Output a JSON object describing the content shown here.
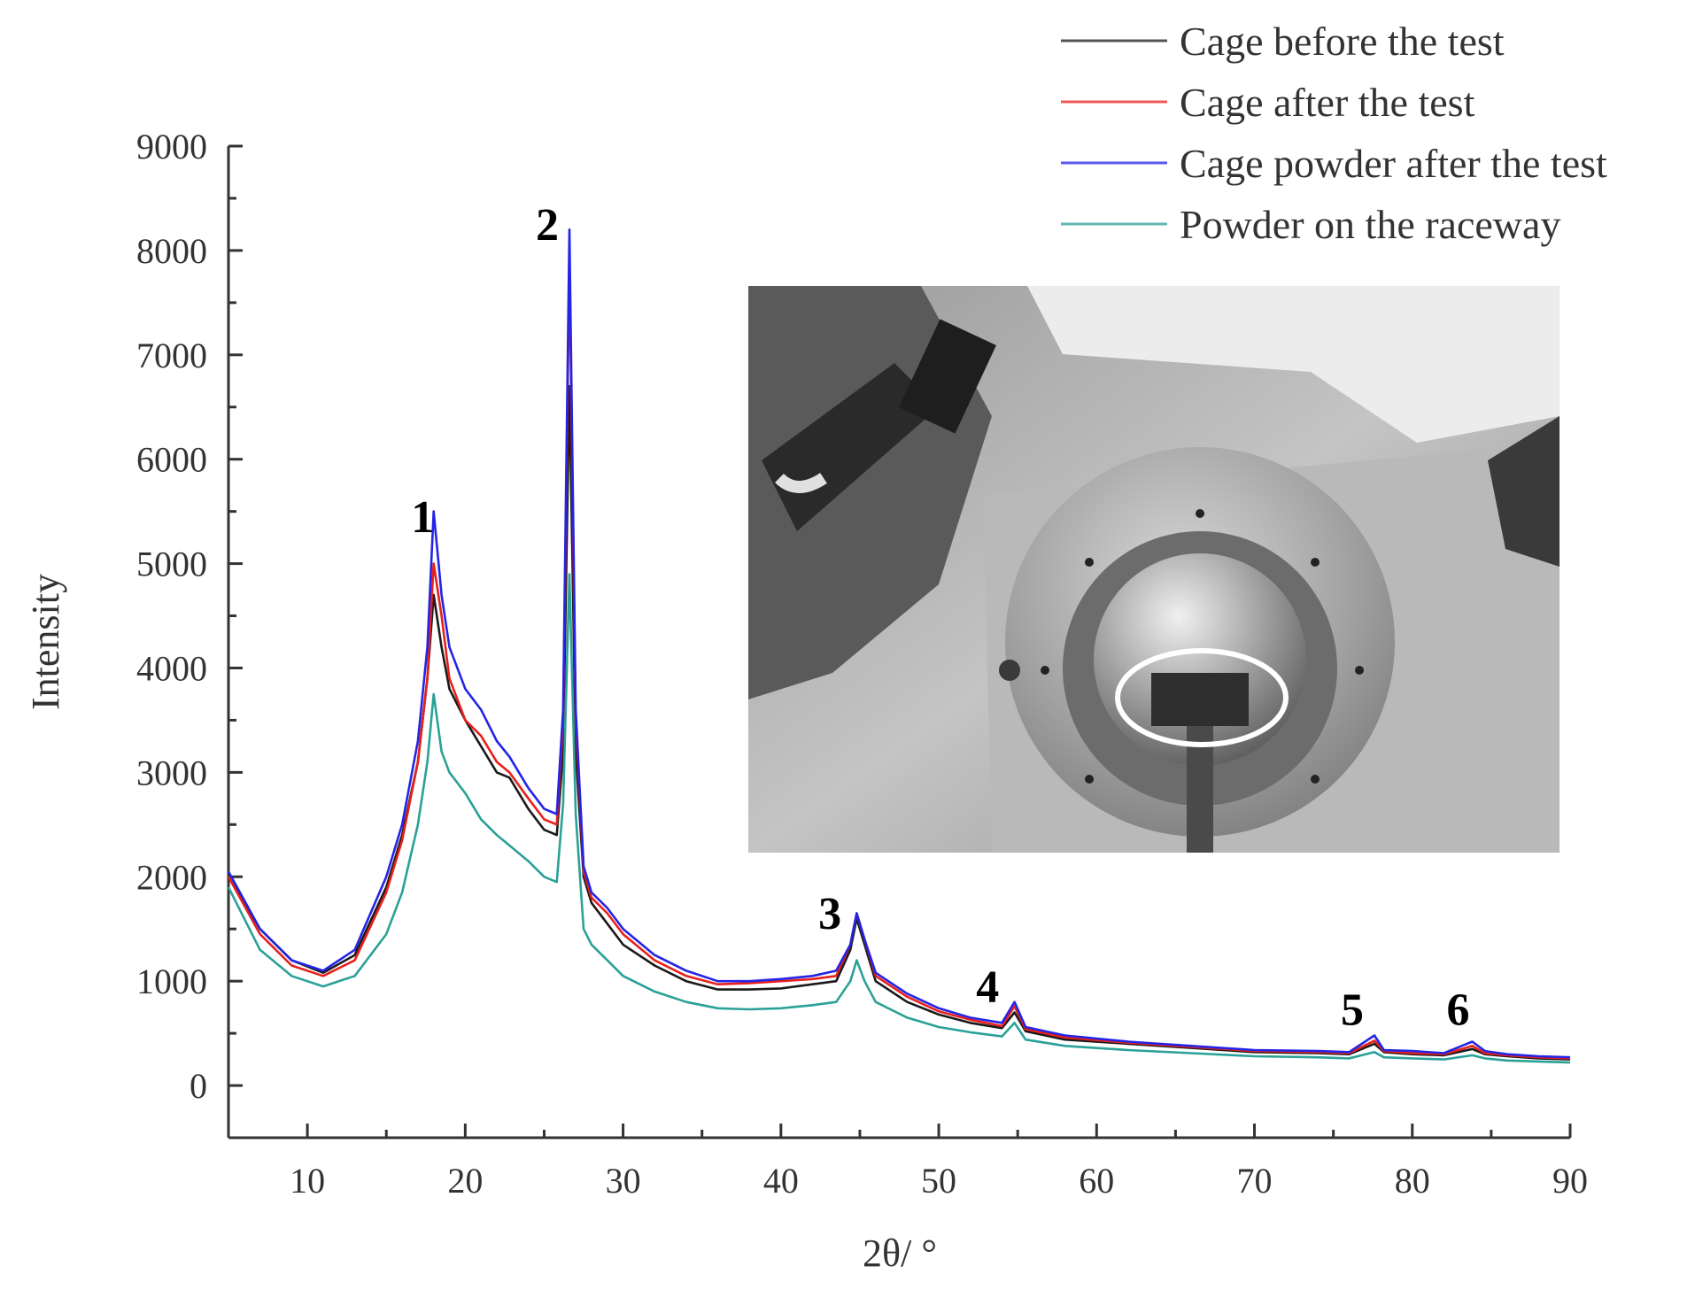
{
  "chart_data": {
    "type": "line",
    "title": "",
    "xlabel": "2θ/ °",
    "ylabel": "Intensity",
    "xlim": [
      5,
      90
    ],
    "ylim": [
      -500,
      9000
    ],
    "xticks": [
      10,
      20,
      30,
      40,
      50,
      60,
      70,
      80,
      90
    ],
    "yticks": [
      0,
      1000,
      2000,
      3000,
      4000,
      5000,
      6000,
      7000,
      8000,
      9000
    ],
    "grid": false,
    "legend_position": "top-right",
    "x": [
      5,
      7,
      9,
      11,
      13,
      15,
      16,
      17,
      17.6,
      18,
      18.5,
      19,
      20,
      21,
      22,
      22.8,
      24,
      25,
      25.8,
      26.2,
      26.6,
      27,
      27.5,
      28,
      29,
      30,
      32,
      34,
      36,
      38,
      40,
      42,
      43.5,
      44.4,
      44.8,
      45.3,
      46,
      48,
      50,
      52,
      54,
      54.8,
      55.5,
      58,
      62,
      66,
      70,
      74,
      76,
      77.6,
      78.2,
      80,
      82,
      83.8,
      84.6,
      86,
      88,
      90
    ],
    "series": [
      {
        "name": "Cage before the test",
        "color": "#1a1a1a",
        "values": [
          2000,
          1500,
          1200,
          1080,
          1250,
          1900,
          2400,
          3100,
          3900,
          4700,
          4200,
          3800,
          3500,
          3250,
          3000,
          2950,
          2650,
          2450,
          2400,
          3200,
          6700,
          3200,
          2000,
          1750,
          1550,
          1350,
          1150,
          1000,
          920,
          920,
          930,
          970,
          1000,
          1300,
          1600,
          1350,
          1000,
          800,
          680,
          600,
          550,
          700,
          520,
          440,
          400,
          360,
          320,
          310,
          300,
          400,
          320,
          300,
          290,
          350,
          300,
          280,
          260,
          250
        ]
      },
      {
        "name": "Cage after the test",
        "color": "#e8201c",
        "values": [
          2000,
          1450,
          1150,
          1050,
          1200,
          1850,
          2350,
          3100,
          3900,
          5000,
          4500,
          3900,
          3500,
          3350,
          3100,
          3000,
          2750,
          2550,
          2500,
          3500,
          7900,
          3500,
          2050,
          1800,
          1650,
          1450,
          1200,
          1050,
          970,
          980,
          1000,
          1020,
          1050,
          1350,
          1650,
          1400,
          1050,
          850,
          710,
          630,
          570,
          760,
          540,
          460,
          410,
          370,
          330,
          320,
          310,
          430,
          330,
          310,
          300,
          380,
          310,
          290,
          270,
          260
        ]
      },
      {
        "name": "Cage powder after the test",
        "color": "#2424e6",
        "values": [
          2050,
          1500,
          1200,
          1100,
          1300,
          2000,
          2500,
          3300,
          4200,
          5500,
          4700,
          4200,
          3800,
          3600,
          3300,
          3150,
          2850,
          2650,
          2600,
          3600,
          8200,
          3600,
          2100,
          1850,
          1700,
          1500,
          1250,
          1100,
          1000,
          1000,
          1020,
          1050,
          1100,
          1350,
          1650,
          1400,
          1080,
          880,
          740,
          650,
          600,
          800,
          560,
          480,
          420,
          380,
          340,
          330,
          320,
          480,
          340,
          330,
          310,
          420,
          330,
          300,
          280,
          270
        ]
      },
      {
        "name": "Powder on the raceway",
        "color": "#2aa198",
        "values": [
          1900,
          1300,
          1050,
          950,
          1050,
          1450,
          1850,
          2500,
          3100,
          3750,
          3200,
          3000,
          2800,
          2550,
          2400,
          2300,
          2150,
          2000,
          1950,
          2700,
          4900,
          2600,
          1500,
          1350,
          1200,
          1050,
          900,
          800,
          740,
          730,
          740,
          770,
          800,
          1000,
          1200,
          1000,
          800,
          650,
          560,
          510,
          470,
          600,
          440,
          380,
          340,
          310,
          280,
          270,
          260,
          320,
          270,
          260,
          250,
          290,
          260,
          240,
          230,
          220
        ]
      }
    ],
    "annotations": [
      {
        "text": "1",
        "x": 17.3,
        "y": 5300
      },
      {
        "text": "2",
        "x": 25.2,
        "y": 8100
      },
      {
        "text": "3",
        "x": 43.1,
        "y": 1500
      },
      {
        "text": "4",
        "x": 53.1,
        "y": 800
      },
      {
        "text": "5",
        "x": 76.2,
        "y": 580
      },
      {
        "text": "6",
        "x": 82.9,
        "y": 580
      }
    ]
  },
  "inset_photo": {
    "description_icon": "xrd-sample-holder-photo",
    "highlight_color": "#ffffff"
  }
}
